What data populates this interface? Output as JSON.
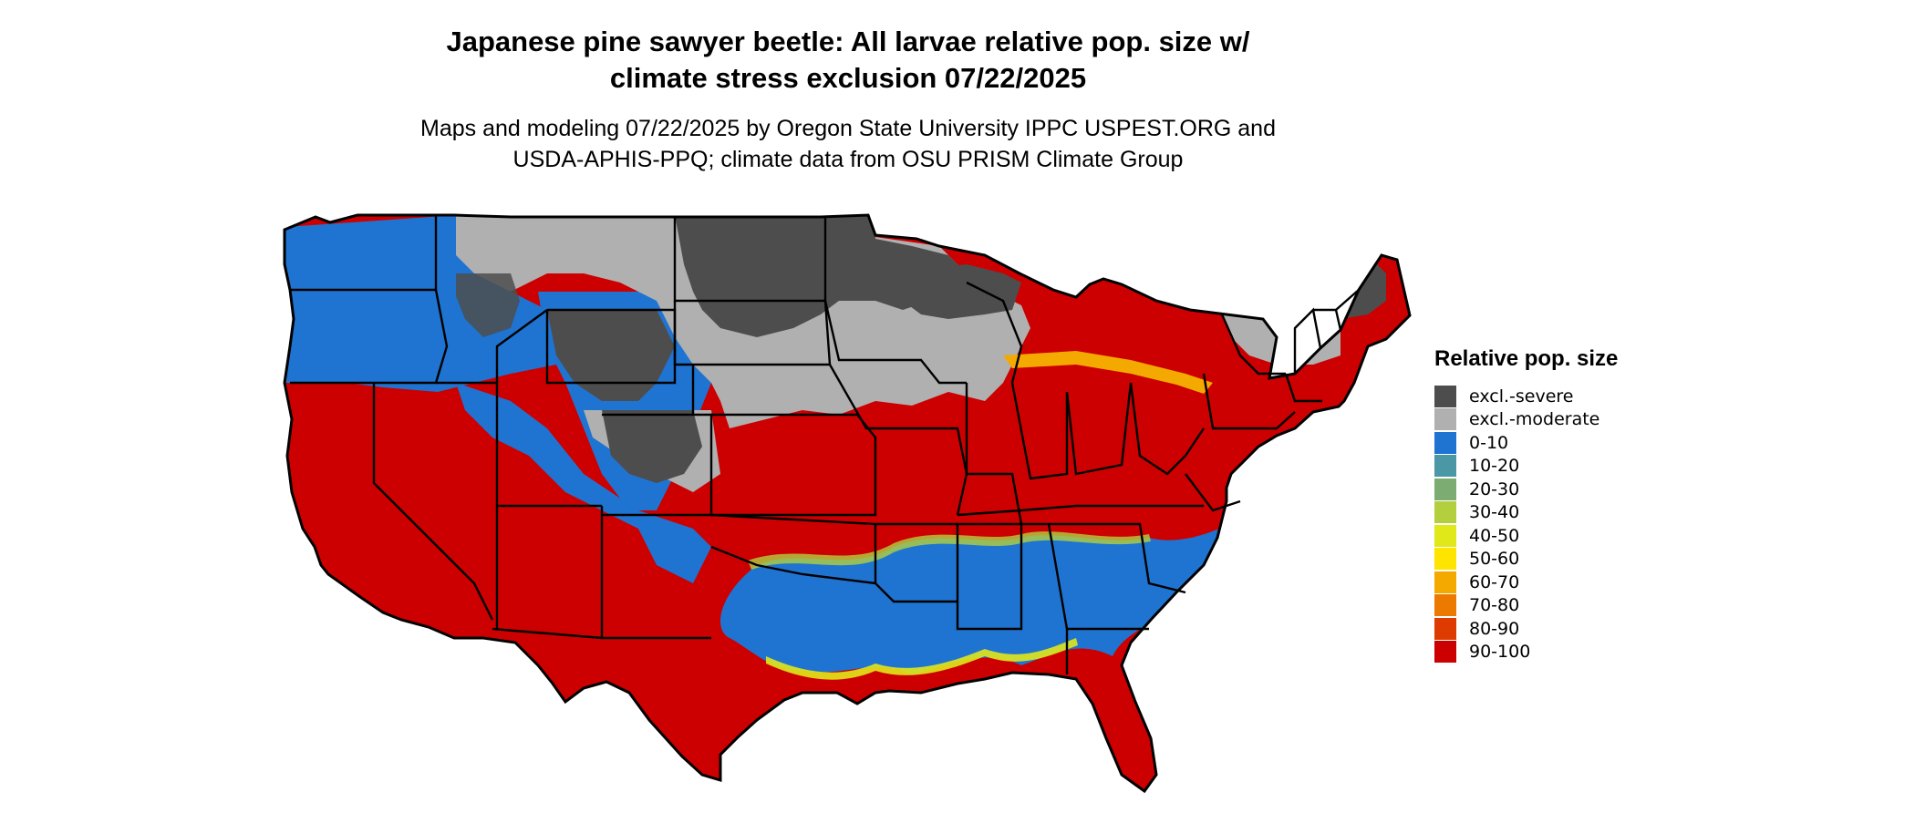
{
  "map": {
    "title": "Japanese pine sawyer beetle: All larvae relative pop. size w/\nclimate stress exclusion 07/22/2025",
    "subtitle": "Maps and modeling 07/22/2025 by Oregon State University IPPC USPEST.ORG and\nUSDA-APHIS-PPQ; climate data from OSU PRISM Climate Group",
    "region": "Contiguous United States"
  },
  "legend": {
    "title": "Relative pop. size",
    "items": [
      {
        "label": "excl.-severe",
        "color": "#4d4d4d"
      },
      {
        "label": "excl.-moderate",
        "color": "#b0b0b0"
      },
      {
        "label": "0-10",
        "color": "#1f74d1"
      },
      {
        "label": "10-20",
        "color": "#4a97a6"
      },
      {
        "label": "20-30",
        "color": "#7dac73"
      },
      {
        "label": "30-40",
        "color": "#b3cf3e"
      },
      {
        "label": "40-50",
        "color": "#e0e81a"
      },
      {
        "label": "50-60",
        "color": "#ffe400"
      },
      {
        "label": "60-70",
        "color": "#f4a900"
      },
      {
        "label": "70-80",
        "color": "#ec7a00"
      },
      {
        "label": "80-90",
        "color": "#dd3b00"
      },
      {
        "label": "90-100",
        "color": "#cc0000"
      }
    ]
  }
}
